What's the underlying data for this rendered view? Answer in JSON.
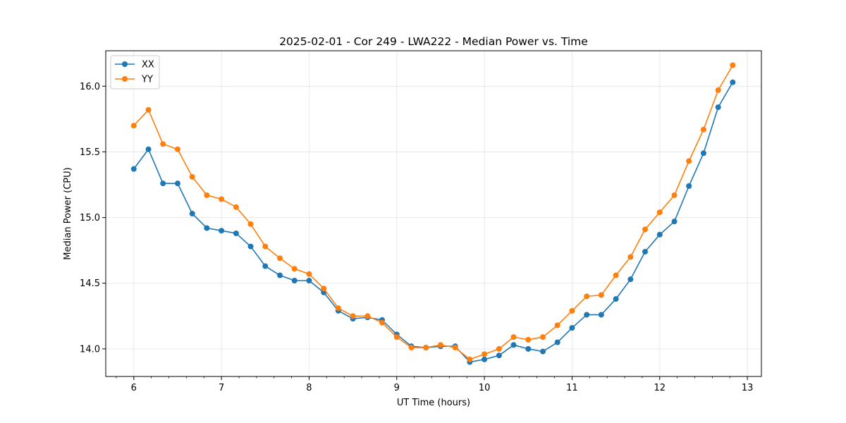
{
  "chart_data": {
    "type": "line",
    "title": "2025-02-01 - Cor 249 - LWA222 - Median Power vs. Time",
    "xlabel": "UT Time (hours)",
    "ylabel": "Median Power (CPU)",
    "xlim": [
      5.68,
      13.16
    ],
    "ylim": [
      13.79,
      16.27
    ],
    "xticks": [
      6,
      7,
      8,
      9,
      10,
      11,
      12,
      13
    ],
    "xtick_labels": [
      "6",
      "7",
      "8",
      "9",
      "10",
      "11",
      "12",
      "13"
    ],
    "yticks": [
      14.0,
      14.5,
      15.0,
      15.5,
      16.0
    ],
    "ytick_labels": [
      "14.0",
      "14.5",
      "15.0",
      "15.5",
      "16.0"
    ],
    "x_minor_step": 0.2,
    "grid": true,
    "legend_position": "upper-left",
    "x": [
      6.0,
      6.167,
      6.333,
      6.5,
      6.667,
      6.833,
      7.0,
      7.167,
      7.333,
      7.5,
      7.667,
      7.833,
      8.0,
      8.167,
      8.333,
      8.5,
      8.667,
      8.833,
      9.0,
      9.167,
      9.333,
      9.5,
      9.667,
      9.833,
      10.0,
      10.167,
      10.333,
      10.5,
      10.667,
      10.833,
      11.0,
      11.167,
      11.333,
      11.5,
      11.667,
      11.833,
      12.0,
      12.167,
      12.333,
      12.5,
      12.667,
      12.833
    ],
    "series": [
      {
        "name": "XX",
        "color": "#1f77b4",
        "values": [
          15.37,
          15.52,
          15.26,
          15.26,
          15.03,
          14.92,
          14.9,
          14.88,
          14.78,
          14.63,
          14.56,
          14.52,
          14.52,
          14.43,
          14.29,
          14.23,
          14.24,
          14.22,
          14.11,
          14.02,
          14.01,
          14.02,
          14.02,
          13.9,
          13.92,
          13.95,
          14.03,
          14.0,
          13.98,
          14.05,
          14.16,
          14.26,
          14.26,
          14.38,
          14.53,
          14.74,
          14.87,
          14.97,
          15.24,
          15.49,
          15.84,
          16.03
        ]
      },
      {
        "name": "YY",
        "color": "#ff7f0e",
        "values": [
          15.7,
          15.82,
          15.56,
          15.52,
          15.31,
          15.17,
          15.14,
          15.08,
          14.95,
          14.78,
          14.69,
          14.61,
          14.57,
          14.46,
          14.31,
          14.25,
          14.25,
          14.2,
          14.09,
          14.01,
          14.01,
          14.03,
          14.01,
          13.92,
          13.96,
          14.0,
          14.09,
          14.07,
          14.09,
          14.18,
          14.29,
          14.4,
          14.41,
          14.56,
          14.7,
          14.91,
          15.04,
          15.17,
          15.43,
          15.67,
          15.97,
          16.16
        ]
      }
    ]
  }
}
